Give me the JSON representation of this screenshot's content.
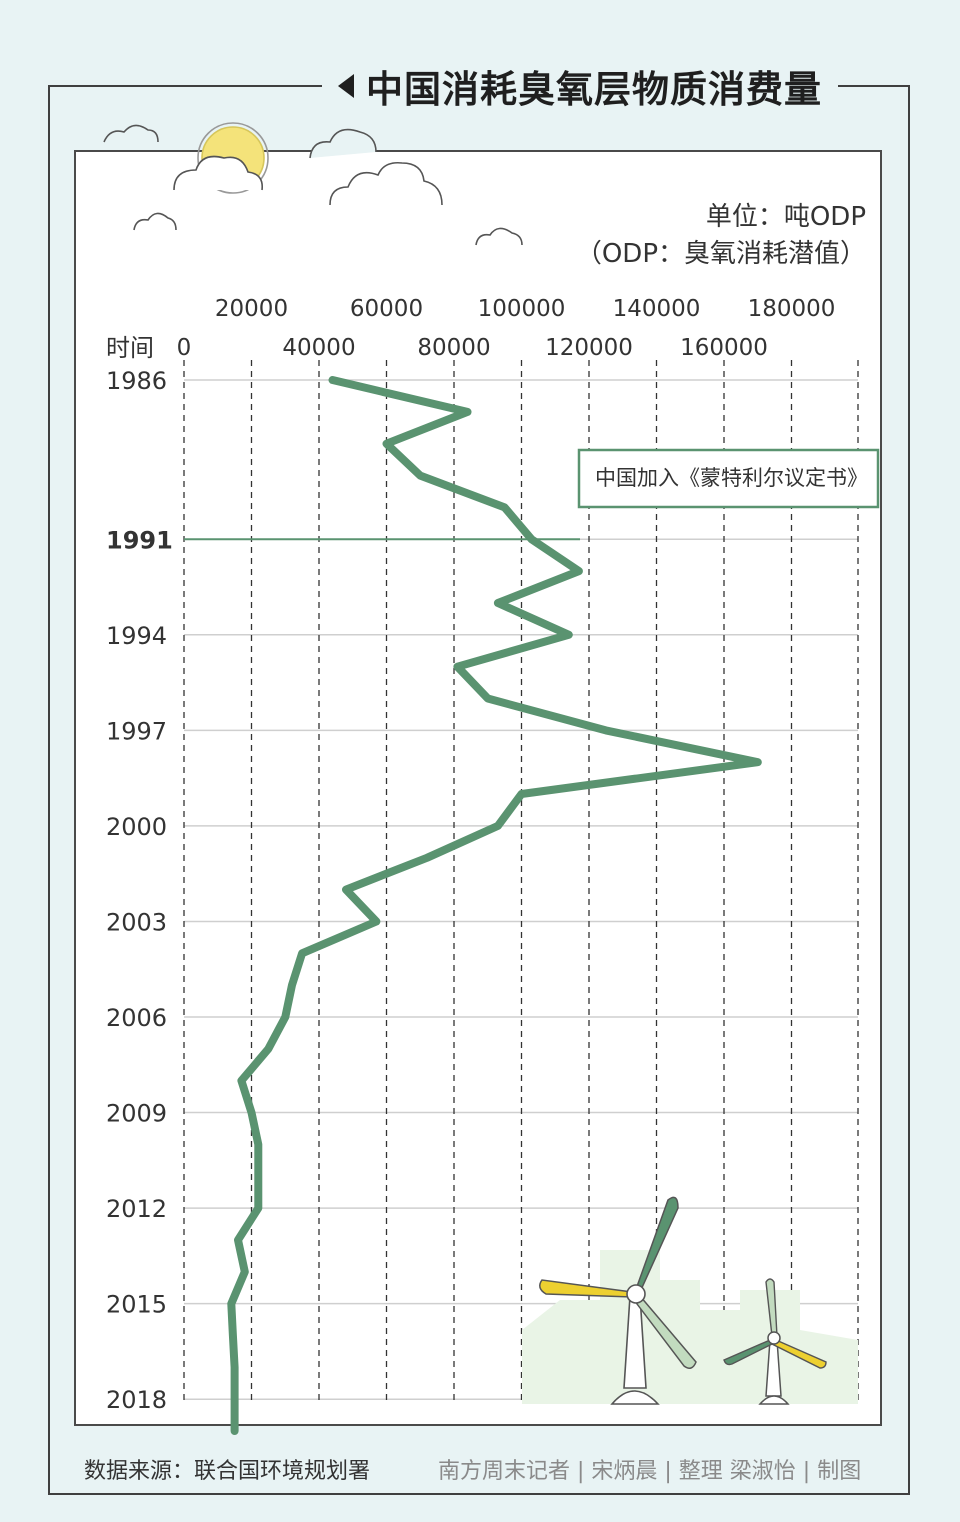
{
  "title": "中国消耗臭氧层物质消费量",
  "unit_line1": "单位：吨ODP",
  "unit_line2": "（ODP：臭氧消耗潜值）",
  "time_label": "时间",
  "source": "数据来源：联合国环境规划署",
  "credit": "南方周末记者 | 宋炳晨 | 整理    梁淑怡 | 制图",
  "annotation": {
    "year": "1991",
    "label": "中国加入《蒙特利尔议定书》"
  },
  "colors": {
    "line": "#5a9370",
    "background": "#e8f3f4",
    "sun": "#f4e37a",
    "blade_yellow": "#edd030",
    "blade_light": "#c2dbbf"
  },
  "chart_data": {
    "type": "line",
    "orientation": "vertical-time-axis",
    "x_ticks_upper": [
      "20000",
      "60000",
      "100000",
      "140000",
      "180000"
    ],
    "x_ticks_lower": [
      "0",
      "40000",
      "80000",
      "120000",
      "160000"
    ],
    "xlim": [
      0,
      200000
    ],
    "year_labels": [
      "1986",
      "1991",
      "1994",
      "1997",
      "2000",
      "2003",
      "2006",
      "2009",
      "2012",
      "2015",
      "2018"
    ],
    "years": [
      1986,
      1987,
      1988,
      1989,
      1990,
      1991,
      1992,
      1993,
      1994,
      1995,
      1996,
      1997,
      1998,
      1999,
      2000,
      2001,
      2002,
      2003,
      2004,
      2005,
      2006,
      2007,
      2008,
      2009,
      2010,
      2011,
      2012,
      2013,
      2014,
      2015,
      2016,
      2017,
      2018,
      2019
    ],
    "values": [
      44000,
      84000,
      60000,
      70000,
      95000,
      103000,
      117000,
      93000,
      114000,
      81000,
      90000,
      125000,
      170000,
      100000,
      93000,
      72000,
      48000,
      57000,
      35000,
      32000,
      30000,
      25000,
      17000,
      20000,
      22000,
      22000,
      22000,
      16000,
      18000,
      14000,
      14500,
      15000,
      15000,
      15000
    ],
    "ylim": [
      1986,
      2019
    ],
    "grid": true,
    "grid_style": "dashed vertical, solid horizontal"
  }
}
